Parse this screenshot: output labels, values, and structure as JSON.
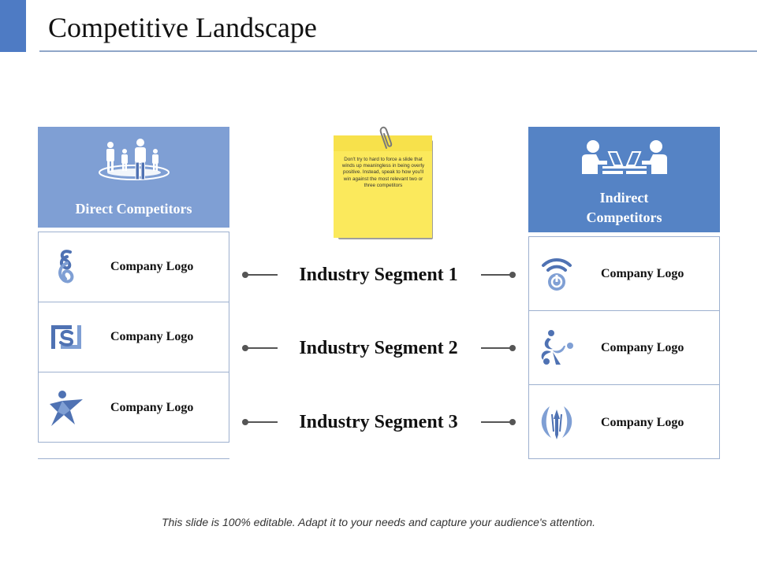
{
  "slide": {
    "title": "Competitive Landscape",
    "footer": "This slide is 100% editable. Adapt it to your needs and capture your audience's attention."
  },
  "direct": {
    "heading": "Direct Competitors",
    "icon": "group-people-icon",
    "logos": [
      {
        "label": "Company Logo",
        "icon": "swirl-s-logo-icon"
      },
      {
        "label": "Company Logo",
        "icon": "square-s-logo-icon"
      },
      {
        "label": "Company Logo",
        "icon": "star-figure-logo-icon"
      }
    ]
  },
  "indirect": {
    "heading_line1": "Indirect",
    "heading_line2": "Competitors",
    "icon": "people-laptops-icon",
    "logos": [
      {
        "label": "Company Logo",
        "icon": "wifi-power-logo-icon"
      },
      {
        "label": "Company Logo",
        "icon": "figures-circle-logo-icon"
      },
      {
        "label": "Company Logo",
        "icon": "leaf-arrow-logo-icon"
      }
    ]
  },
  "segments": [
    {
      "label": "Industry Segment 1"
    },
    {
      "label": "Industry Segment 2"
    },
    {
      "label": "Industry Segment 3"
    }
  ],
  "note": {
    "text": "Don't try to hard to force a slide that winds up meaningless in being overly positive. Instead, speak to how you'll win against the most relevant two or three competitors"
  },
  "colors": {
    "accent": "#4e7bc4",
    "direct_header": "#7f9fd4",
    "indirect_header": "#5583c5",
    "sticky_note": "#fbe95c",
    "logo_blue": "#4f72b3"
  }
}
